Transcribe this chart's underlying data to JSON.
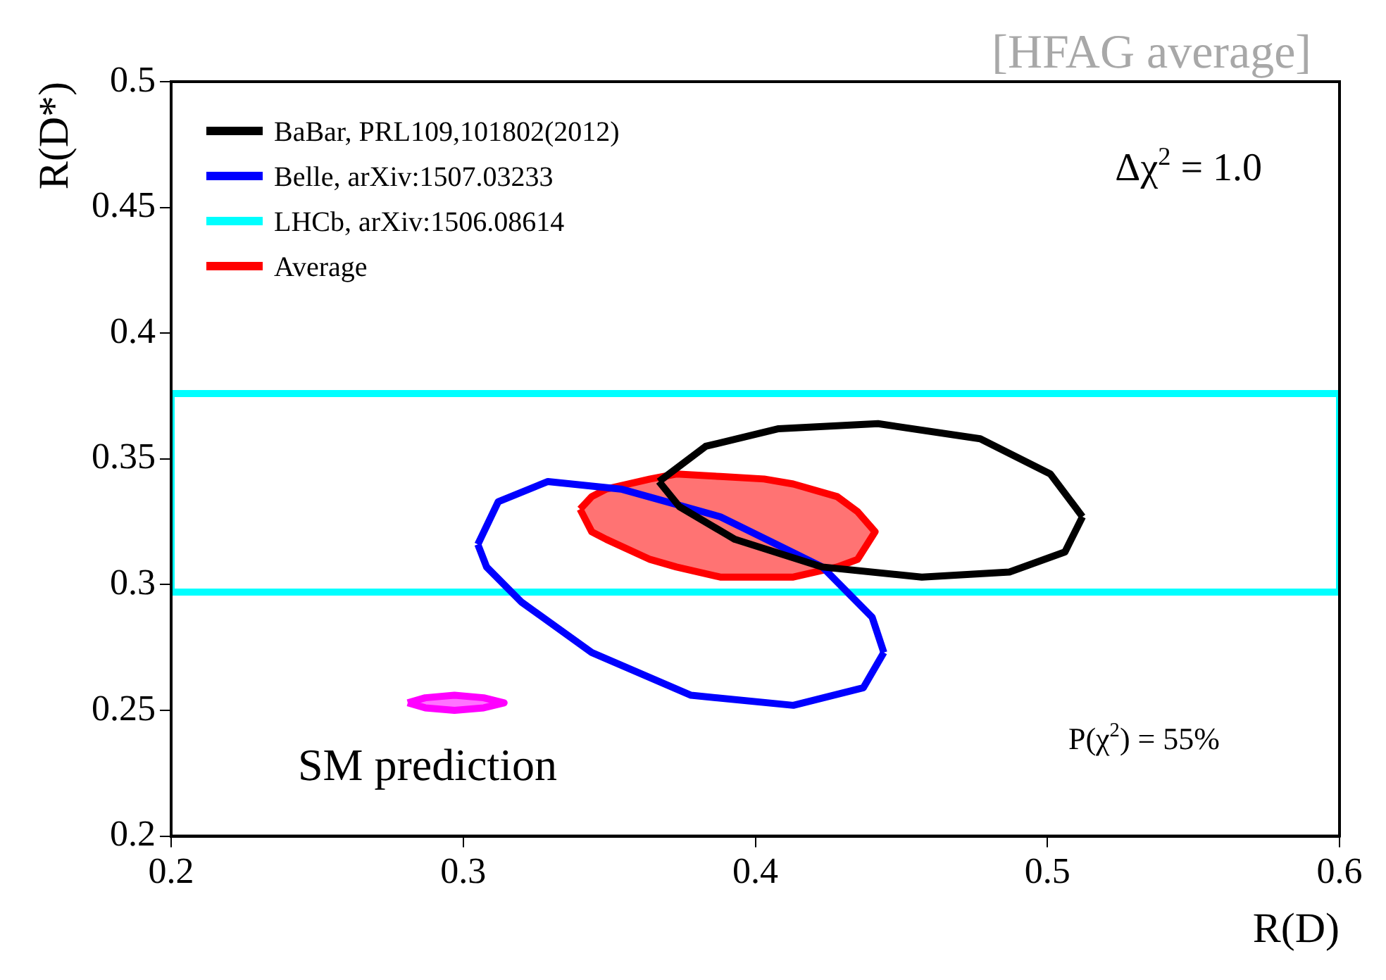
{
  "chart_data": {
    "type": "line",
    "xlabel": "R(D)",
    "ylabel": "R(D*)",
    "xlim": [
      0.2,
      0.6
    ],
    "ylim": [
      0.2,
      0.5
    ],
    "xticks": [
      0.2,
      0.3,
      0.4,
      0.5,
      0.6
    ],
    "yticks": [
      0.2,
      0.25,
      0.3,
      0.35,
      0.4,
      0.45,
      0.5
    ],
    "legend": "top left",
    "marker": "none",
    "annotations": [
      "[HFAG average]",
      "Δχ$^{2}$ = 1.0",
      "P(χ$^{2}$) = 55%",
      "SM prediction"
    ],
    "series": [
      {
        "name": "BaBar, PRL109,101802(2012)",
        "color": "#000000",
        "type": "line",
        "x": [
          0.367,
          0.383,
          0.408,
          0.442,
          0.477,
          0.501,
          0.512
        ],
        "values": [
          0.341,
          0.355,
          0.362,
          0.364,
          0.358,
          0.344,
          0.327
        ]
      },
      {
        "color": "#000000",
        "type": "line",
        "x": [
          0.367,
          0.374,
          0.393,
          0.423,
          0.457,
          0.487,
          0.506,
          0.512
        ],
        "values": [
          0.341,
          0.331,
          0.318,
          0.307,
          0.303,
          0.305,
          0.313,
          0.327
        ]
      },
      {
        "name": "Belle, arXiv:1507.03233",
        "color": "#0000ff",
        "type": "line",
        "x": [
          0.305,
          0.312,
          0.329,
          0.354,
          0.388,
          0.423,
          0.44,
          0.444
        ],
        "values": [
          0.316,
          0.333,
          0.341,
          0.338,
          0.327,
          0.307,
          0.287,
          0.273
        ]
      },
      {
        "color": "#0000ff",
        "type": "line",
        "x": [
          0.305,
          0.308,
          0.32,
          0.344,
          0.378,
          0.413,
          0.437,
          0.444
        ],
        "values": [
          0.316,
          0.307,
          0.293,
          0.273,
          0.256,
          0.252,
          0.259,
          0.273
        ]
      },
      {
        "name": "LHCb, arXiv:1506.08614",
        "color": "#00ffff",
        "type": "line",
        "x": [
          0.2,
          0.2,
          0.6,
          0.6
        ],
        "values": [
          0.297,
          0.376,
          0.376,
          0.297
        ]
      },
      {
        "color": "#00ffff",
        "type": "line",
        "x": [
          0.2,
          0.6
        ],
        "values": [
          0.297,
          0.297
        ]
      },
      {
        "name": "Average",
        "color": "#ff0000",
        "type": "area",
        "x": [
          0.34,
          0.344,
          0.349,
          0.364,
          0.373,
          0.388,
          0.403,
          0.413,
          0.428,
          0.435,
          0.441
        ],
        "values": [
          null,
          null,
          null,
          null,
          null,
          null,
          null,
          null,
          null,
          null,
          null
        ],
        "upper": [
          0.33,
          0.335,
          0.338,
          0.342,
          0.344,
          0.343,
          0.342,
          0.34,
          0.335,
          0.329,
          0.321
        ],
        "lower": [
          0.33,
          0.321,
          0.318,
          0.31,
          0.307,
          0.303,
          0.303,
          0.303,
          0.307,
          0.31,
          0.321
        ]
      },
      {
        "color": "#ff00ff",
        "type": "area",
        "x": [
          0.281,
          0.287,
          0.297,
          0.307,
          0.314
        ],
        "values": [
          null,
          null,
          null,
          null,
          null
        ],
        "upper": [
          0.253,
          0.255,
          0.256,
          0.255,
          0.253
        ],
        "lower": [
          0.253,
          0.251,
          0.25,
          0.251,
          0.253
        ]
      }
    ]
  }
}
